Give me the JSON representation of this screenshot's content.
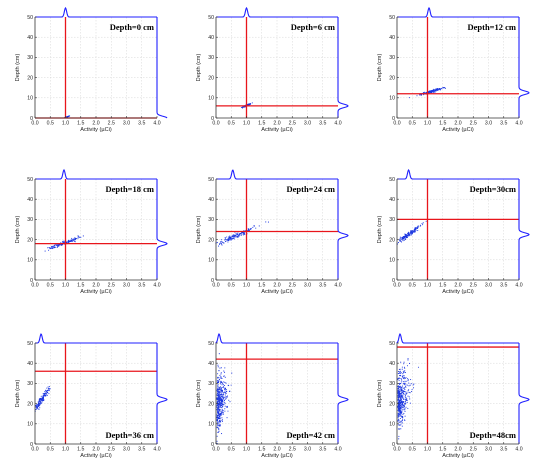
{
  "theme": {
    "frame_color": "#1f1fff",
    "marker_line_color": "#e8151b",
    "point_color": "#1a35e0",
    "grid_color": "#d4d4d4"
  },
  "chart_data": [
    {
      "type": "scatter",
      "title": "Depth=0 cm",
      "xlabel": "Activity (µCi)",
      "ylabel": "Depth (cm)",
      "xlim": [
        0,
        4
      ],
      "ylim": [
        0,
        50
      ],
      "xticks": [
        "0.0",
        "0.5",
        "1.0",
        "1.5",
        "2.0",
        "2.5",
        "3.0",
        "3.5",
        "4.0"
      ],
      "yticks": [
        "0",
        "10",
        "20",
        "30",
        "40",
        "50"
      ],
      "grid": true,
      "vline_x": 1.0,
      "hline_y": 0,
      "cluster": {
        "shape": "blob",
        "x_center": 1.02,
        "y_center": 0.3,
        "x_spread": 0.04,
        "y_spread": 0.3
      },
      "x_marginal_peak": 1.0,
      "y_marginal_peak": 0
    },
    {
      "type": "scatter",
      "title": "Depth=6 cm",
      "xlabel": "Activity (µCi)",
      "ylabel": "Depth (cm)",
      "xlim": [
        0,
        4
      ],
      "ylim": [
        0,
        50
      ],
      "xticks": [
        "0.0",
        "0.5",
        "1.0",
        "1.5",
        "2.0",
        "2.5",
        "3.0",
        "3.5",
        "4.0"
      ],
      "yticks": [
        "0",
        "10",
        "20",
        "30",
        "40",
        "50"
      ],
      "grid": true,
      "vline_x": 1.0,
      "hline_y": 6,
      "cluster": {
        "shape": "blob",
        "x_center": 1.0,
        "y_center": 6.2,
        "x_spread": 0.07,
        "y_spread": 0.5
      },
      "x_marginal_peak": 1.0,
      "y_marginal_peak": 6
    },
    {
      "type": "scatter",
      "title": "Depth=12 cm",
      "xlabel": "Activity (µCi)",
      "ylabel": "Depth (cm)",
      "xlim": [
        0,
        4
      ],
      "ylim": [
        0,
        50
      ],
      "xticks": [
        "0.0",
        "0.5",
        "1.0",
        "1.5",
        "2.0",
        "2.5",
        "3.0",
        "3.5",
        "4.0"
      ],
      "yticks": [
        "0",
        "10",
        "20",
        "30",
        "40",
        "50"
      ],
      "grid": true,
      "vline_x": 1.0,
      "hline_y": 12,
      "cluster": {
        "shape": "blob",
        "x_center": 1.1,
        "y_center": 13,
        "x_spread": 0.2,
        "y_spread": 1.0
      },
      "x_marginal_peak": 1.05,
      "y_marginal_peak": 12.5
    },
    {
      "type": "scatter",
      "title": "Depth=18 cm",
      "xlabel": "Activity (µCi)",
      "ylabel": "Depth (cm)",
      "xlim": [
        0,
        4
      ],
      "ylim": [
        0,
        50
      ],
      "xticks": [
        "0.0",
        "0.5",
        "1.0",
        "1.5",
        "2.0",
        "2.5",
        "3.0",
        "3.5",
        "4.0"
      ],
      "yticks": [
        "0",
        "10",
        "20",
        "30",
        "40",
        "50"
      ],
      "grid": true,
      "vline_x": 1.0,
      "hline_y": 18,
      "cluster": {
        "shape": "blob",
        "x_center": 0.95,
        "y_center": 18.3,
        "x_spread": 0.25,
        "y_spread": 1.5
      },
      "x_marginal_peak": 0.95,
      "y_marginal_peak": 18
    },
    {
      "type": "scatter",
      "title": "Depth=24 cm",
      "xlabel": "Activity (µCi)",
      "ylabel": "Depth (cm)",
      "xlim": [
        0,
        4
      ],
      "ylim": [
        0,
        50
      ],
      "xticks": [
        "0.0",
        "0.5",
        "1.0",
        "1.5",
        "2.0",
        "2.5",
        "3.0",
        "3.5",
        "4.0"
      ],
      "yticks": [
        "0",
        "10",
        "20",
        "30",
        "40",
        "50"
      ],
      "grid": true,
      "vline_x": 1.0,
      "hline_y": 24,
      "cluster": {
        "shape": "blob",
        "x_center": 0.6,
        "y_center": 21.5,
        "x_spread": 0.35,
        "y_spread": 2.5
      },
      "x_marginal_peak": 0.55,
      "y_marginal_peak": 22
    },
    {
      "type": "scatter",
      "title": "Depth=30cm",
      "xlabel": "Activity (µCi)",
      "ylabel": "Depth (cm)",
      "xlim": [
        0,
        4
      ],
      "ylim": [
        0,
        50
      ],
      "xticks": [
        "0.0",
        "0.5",
        "1.0",
        "1.5",
        "2.0",
        "2.5",
        "3.0",
        "3.5",
        "4.0"
      ],
      "yticks": [
        "0",
        "10",
        "20",
        "30",
        "40",
        "50"
      ],
      "grid": true,
      "vline_x": 1.0,
      "hline_y": 30,
      "cluster": {
        "shape": "blob",
        "x_center": 0.38,
        "y_center": 22.5,
        "x_spread": 0.2,
        "y_spread": 2.5
      },
      "x_marginal_peak": 0.38,
      "y_marginal_peak": 22.5
    },
    {
      "type": "scatter",
      "title": "Depth=36 cm",
      "xlabel": "Activity (µCi)",
      "ylabel": "Depth (cm)",
      "xlim": [
        0,
        4
      ],
      "ylim": [
        0,
        50
      ],
      "xticks": [
        "0.0",
        "0.5",
        "1.0",
        "1.5",
        "2.0",
        "2.5",
        "3.0",
        "3.5",
        "4.0"
      ],
      "yticks": [
        "0",
        "10",
        "20",
        "30",
        "40",
        "50"
      ],
      "grid": true,
      "vline_x": 1.0,
      "hline_y": 36,
      "cluster": {
        "shape": "blob",
        "x_center": 0.22,
        "y_center": 22,
        "x_spread": 0.14,
        "y_spread": 3.5
      },
      "x_marginal_peak": 0.2,
      "y_marginal_peak": 22
    },
    {
      "type": "scatter",
      "title": "Depth=42 cm",
      "xlabel": "Activity (µCi)",
      "ylabel": "Depth (cm)",
      "xlim": [
        0,
        4
      ],
      "ylim": [
        0,
        50
      ],
      "xticks": [
        "0.0",
        "0.5",
        "1.0",
        "1.5",
        "2.0",
        "2.5",
        "3.0",
        "3.5",
        "4.0"
      ],
      "yticks": [
        "0",
        "10",
        "20",
        "30",
        "40",
        "50"
      ],
      "grid": true,
      "vline_x": 1.0,
      "hline_y": 42,
      "cluster": {
        "shape": "plume",
        "x_center": 0.12,
        "y_center": 21,
        "x_spread": 0.14,
        "y_spread": 7
      },
      "x_marginal_peak": 0.1,
      "y_marginal_peak": 22
    },
    {
      "type": "scatter",
      "title": "Depth=48cm",
      "xlabel": "Activity (µCi)",
      "ylabel": "Depth (cm)",
      "xlim": [
        0,
        4
      ],
      "ylim": [
        0,
        50
      ],
      "xticks": [
        "0.0",
        "0.5",
        "1.0",
        "1.5",
        "2.0",
        "2.5",
        "3.0",
        "3.5",
        "4.0"
      ],
      "yticks": [
        "0",
        "10",
        "20",
        "30",
        "40",
        "50"
      ],
      "grid": true,
      "vline_x": 1.0,
      "hline_y": 48,
      "cluster": {
        "shape": "plume",
        "x_center": 0.12,
        "y_center": 22,
        "x_spread": 0.15,
        "y_spread": 7
      },
      "x_marginal_peak": 0.1,
      "y_marginal_peak": 22
    }
  ]
}
